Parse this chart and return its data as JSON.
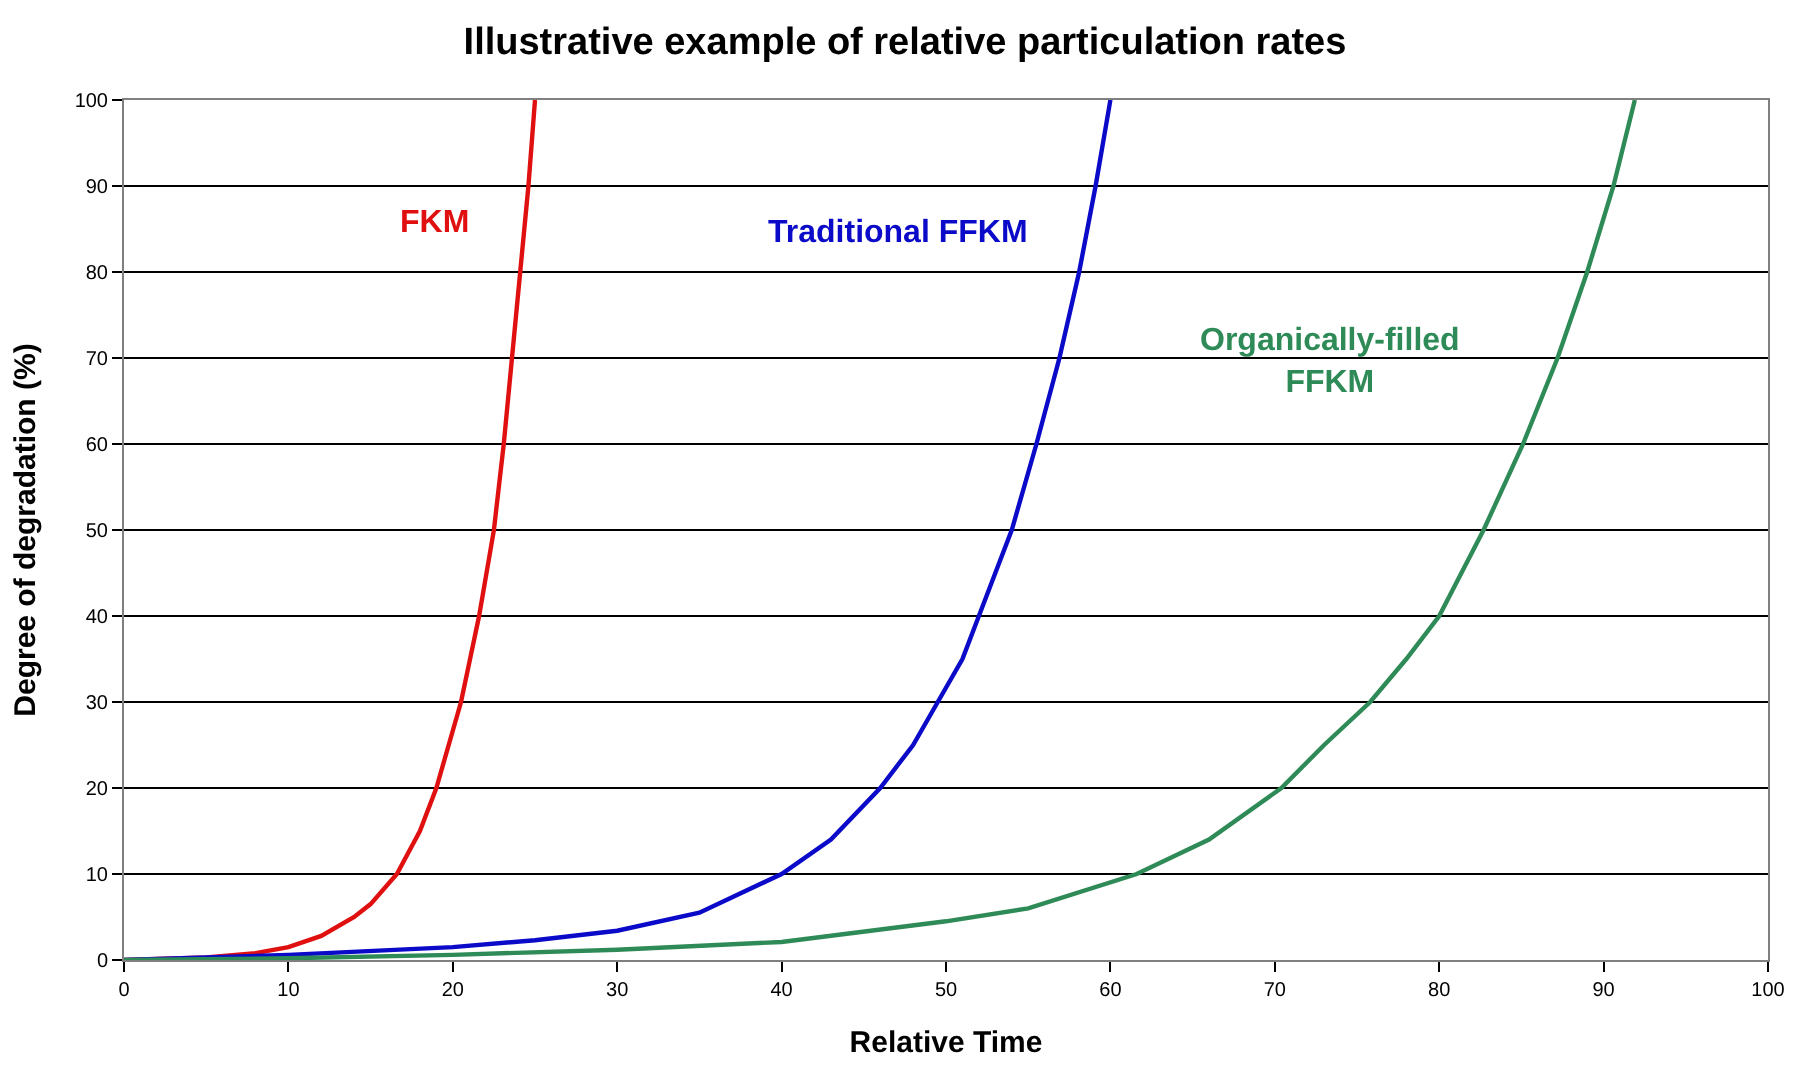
{
  "chart_data": {
    "type": "line",
    "title": "Illustrative example of relative particulation rates",
    "xlabel": "Relative Time",
    "ylabel": "Degree of degradation (%)",
    "xlim": [
      0,
      100
    ],
    "xticks": [
      0,
      10,
      20,
      30,
      40,
      50,
      60,
      70,
      80,
      90,
      100
    ],
    "ylim": [
      0,
      100
    ],
    "yticks": [
      0,
      10,
      20,
      30,
      40,
      50,
      60,
      70,
      80,
      90,
      100
    ],
    "grid": "y",
    "marker": "none",
    "line_style": "solid",
    "series": [
      {
        "name": "FKM",
        "color": "#e01010",
        "x": [
          0,
          5,
          8,
          10,
          12,
          14,
          15,
          16.6,
          18,
          19,
          20.5,
          21.6,
          22.5,
          23.1,
          23.6,
          24.1,
          24.6,
          25
        ],
        "values": [
          0,
          0.3,
          0.8,
          1.5,
          2.8,
          5,
          6.5,
          10,
          15,
          20,
          30,
          40,
          50,
          60,
          70,
          80,
          90,
          100
        ]
      },
      {
        "name": "Traditional FFKM",
        "color": "#0a0ac8",
        "x": [
          0,
          10,
          20,
          25,
          30,
          35,
          40,
          43,
          46,
          48,
          49.5,
          51,
          52,
          53,
          54,
          55.5,
          56.9,
          58.1,
          59.1,
          60
        ],
        "values": [
          0,
          0.6,
          1.5,
          2.3,
          3.4,
          5.5,
          10,
          14,
          20,
          25,
          30,
          35,
          40,
          45,
          50,
          60,
          70,
          80,
          90,
          100
        ]
      },
      {
        "name": "Organically-filled FFKM",
        "color": "#2e8b57",
        "x": [
          0,
          10,
          20,
          30,
          40,
          50,
          55,
          61.6,
          66,
          70.4,
          73,
          75.8,
          78,
          80,
          82.7,
          85.1,
          87.2,
          89,
          90.6,
          91.9
        ],
        "values": [
          0,
          0.2,
          0.6,
          1.2,
          2.1,
          4.5,
          6,
          10,
          14,
          20,
          25,
          30,
          35,
          40,
          50,
          60,
          70,
          80,
          90,
          100
        ]
      }
    ]
  }
}
